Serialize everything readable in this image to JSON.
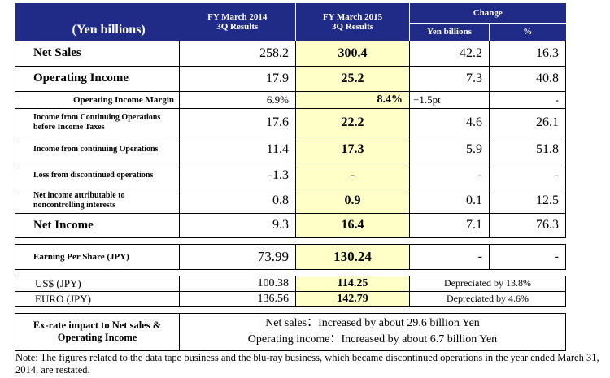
{
  "header": {
    "caption": "(Yen billions)",
    "col1_line1": "FY March 2014",
    "col1_line2": "3Q Results",
    "col2_line1": "FY March 2015",
    "col2_line2": "3Q Results",
    "change": "Change",
    "yen_billions": "Yen billions",
    "percent": "%"
  },
  "rows": [
    {
      "label": "Net Sales",
      "fy2014": "258.2",
      "fy2015": "300.4",
      "change_yen": "42.2",
      "change_pct": "16.3"
    },
    {
      "label": "Operating Income",
      "fy2014": "17.9",
      "fy2015": "25.2",
      "change_yen": "7.3",
      "change_pct": "40.8"
    },
    {
      "label": "Operating Income Margin",
      "fy2014": "6.9%",
      "fy2015": "8.4%",
      "change_yen": "+1.5pt",
      "change_pct": "-"
    },
    {
      "label": "Income from Continuing Operations before Income Taxes",
      "fy2014": "17.6",
      "fy2015": "22.2",
      "change_yen": "4.6",
      "change_pct": "26.1"
    },
    {
      "label": "Income from continuing Operations",
      "fy2014": "11.4",
      "fy2015": "17.3",
      "change_yen": "5.9",
      "change_pct": "51.8"
    },
    {
      "label": "Loss from discontinued operations",
      "fy2014": "-1.3",
      "fy2015": "-",
      "change_yen": "-",
      "change_pct": "-"
    },
    {
      "label": "Net income attributable to noncontrolling interests",
      "fy2014": "0.8",
      "fy2015": "0.9",
      "change_yen": "0.1",
      "change_pct": "12.5"
    },
    {
      "label": "Net Income",
      "fy2014": "9.3",
      "fy2015": "16.4",
      "change_yen": "7.1",
      "change_pct": "76.3"
    }
  ],
  "eps": {
    "label": "Earning Per Share (JPY)",
    "fy2014": "73.99",
    "fy2015": "130.24",
    "change_yen": "-",
    "change_pct": "-"
  },
  "fx": [
    {
      "label": "US$ (JPY)",
      "fy2014": "100.38",
      "fy2015": "114.25",
      "change": "Depreciated by 13.8%"
    },
    {
      "label": "EURO (JPY)",
      "fy2014": "136.56",
      "fy2015": "142.79",
      "change": "Depreciated by 4.6%"
    }
  ],
  "exrate": {
    "label": "Ex-rate impact to Net sales & Operating Income",
    "line1": "Net sales：Increased by about 29.6 billion Yen",
    "line2": "Operating income：Increased by about 6.7 billion Yen"
  },
  "note": "Note: The figures related to the data tape business and the blu-ray business, which became discontinued operations  in the year ended March 31, 2014, are restated.",
  "colors": {
    "header_bg": "#1f2b86",
    "highlight": "#ffffc8"
  }
}
